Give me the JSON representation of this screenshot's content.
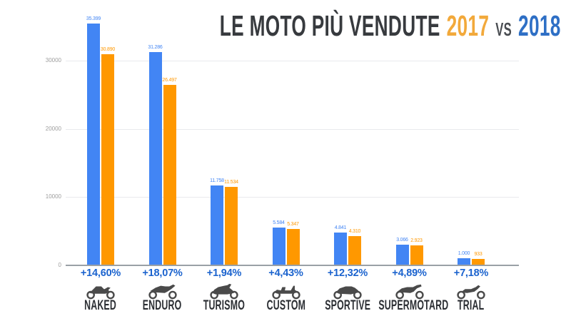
{
  "header": {
    "title": "LE MOTO PIÙ VENDUTE",
    "year_left": "2017",
    "vs_label": "VS",
    "year_right": "2018",
    "year_left_color": "#F2A93B",
    "year_right_color": "#2E6FC5",
    "title_color": "#373A3E"
  },
  "chart_data": {
    "type": "bar",
    "title": "LE MOTO PIÙ VENDUTE 2017 vs 2018",
    "categories": [
      "NAKED",
      "ENDURO",
      "TURISMO",
      "CUSTOM",
      "SPORTIVE",
      "SUPERMOTARD",
      "TRIAL"
    ],
    "icons": [
      "naked-motorcycle-icon",
      "enduro-motorcycle-icon",
      "turismo-motorcycle-icon",
      "custom-motorcycle-icon",
      "sportive-motorcycle-icon",
      "supermotard-motorcycle-icon",
      "trial-motorcycle-icon"
    ],
    "series": [
      {
        "name": "2018",
        "color": "#4285F4",
        "values": [
          35399,
          31286,
          11758,
          5584,
          4841,
          3066,
          1000
        ],
        "labels": [
          "35.399",
          "31.286",
          "11.758",
          "5.584",
          "4.841",
          "3.066",
          "1.000"
        ]
      },
      {
        "name": "2017",
        "color": "#FF9800",
        "values": [
          30890,
          26497,
          11534,
          5347,
          4310,
          2923,
          933
        ],
        "labels": [
          "30.890",
          "26.497",
          "11.534",
          "5.347",
          "4.310",
          "2.923",
          "933"
        ]
      }
    ],
    "deltas": [
      "+14,60%",
      "+18,07%",
      "+1,94%",
      "+4,43%",
      "+12,32%",
      "+4,89%",
      "+7,18%"
    ],
    "delta_color": "#1B63CE",
    "yaxis": {
      "ticks": [
        0,
        10000,
        20000,
        30000
      ],
      "tick_labels": [
        "0",
        "10000",
        "20000",
        "30000"
      ],
      "range": [
        0,
        36000
      ],
      "grid": true
    },
    "legend_position": "none",
    "icon_color": "#4A4A4A"
  }
}
